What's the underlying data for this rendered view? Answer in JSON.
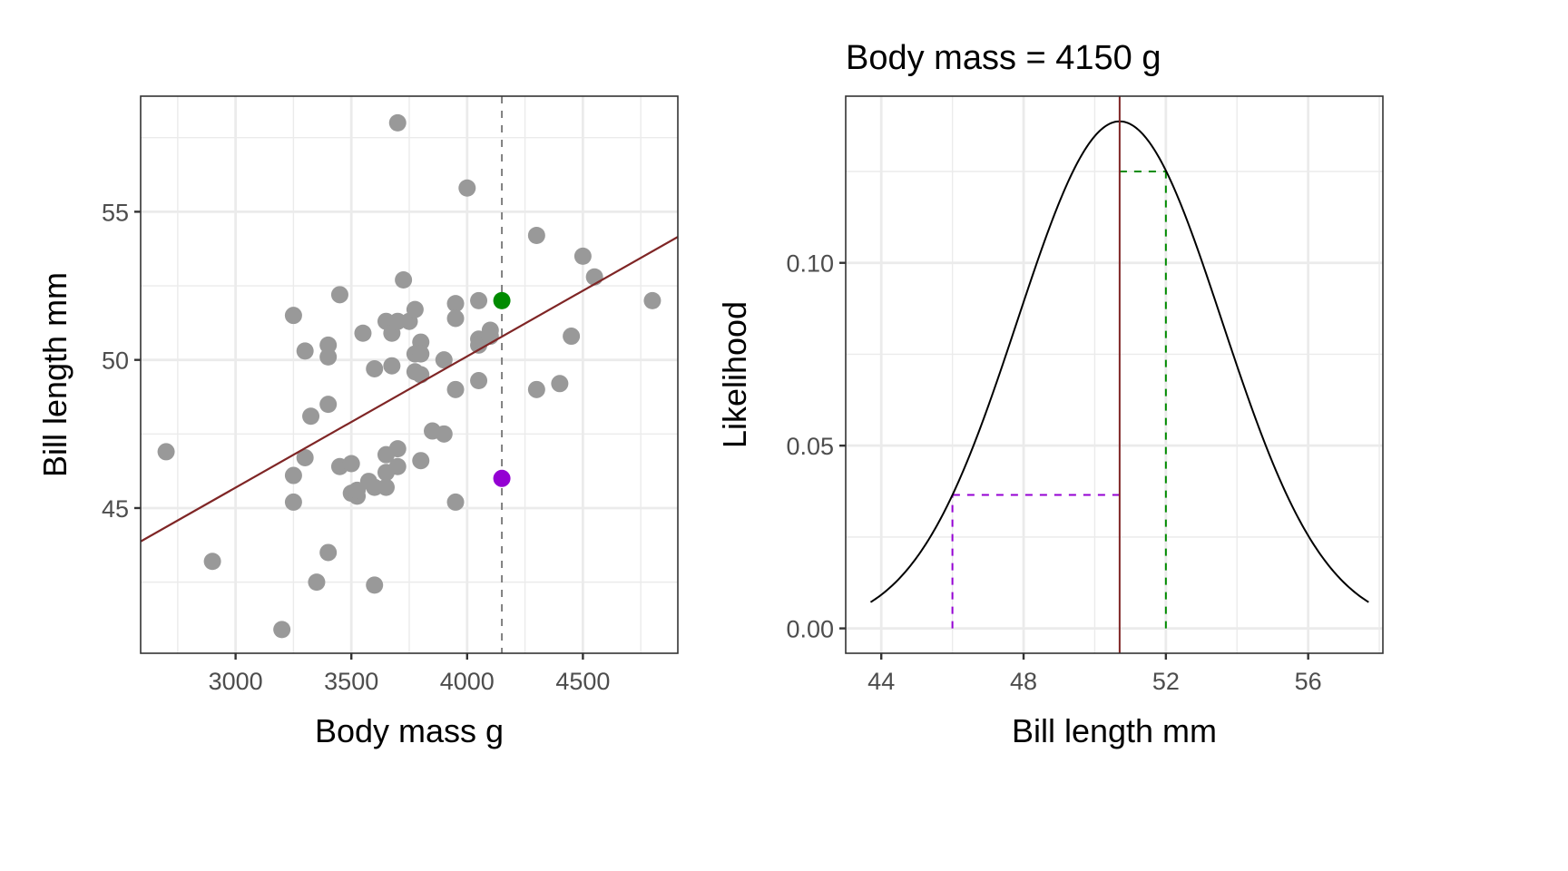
{
  "colors": {
    "points": "#999999",
    "regression_line": "#7f2525",
    "highlight_high": "#008b00",
    "highlight_low": "#9400d3",
    "density_curve": "#000000",
    "mean_line": "#7f2525",
    "grid": "#ebebeb",
    "panel_border": "#333333",
    "vline_dashed": "#7f7f7f"
  },
  "chart_data": [
    {
      "type": "scatter",
      "title": "",
      "xlabel": "Body mass g",
      "ylabel": "Bill length mm",
      "xlim": [
        2590,
        4910
      ],
      "ylim": [
        40.1,
        58.9
      ],
      "xticks": [
        3000,
        3500,
        4000,
        4500
      ],
      "xtick_labels": [
        "3000",
        "3500",
        "4000",
        "4500"
      ],
      "yticks": [
        45,
        50,
        55
      ],
      "ytick_labels": [
        "45",
        "50",
        "55"
      ],
      "grid": true,
      "points": [
        {
          "x": 2700,
          "y": 46.9
        },
        {
          "x": 2900,
          "y": 43.2
        },
        {
          "x": 3200,
          "y": 40.9
        },
        {
          "x": 3250,
          "y": 51.5
        },
        {
          "x": 3250,
          "y": 46.1
        },
        {
          "x": 3250,
          "y": 45.2
        },
        {
          "x": 3300,
          "y": 50.3
        },
        {
          "x": 3300,
          "y": 46.7
        },
        {
          "x": 3325,
          "y": 48.1
        },
        {
          "x": 3350,
          "y": 42.5
        },
        {
          "x": 3400,
          "y": 50.5
        },
        {
          "x": 3400,
          "y": 50.1
        },
        {
          "x": 3400,
          "y": 48.5
        },
        {
          "x": 3400,
          "y": 43.5
        },
        {
          "x": 3450,
          "y": 52.2
        },
        {
          "x": 3450,
          "y": 46.4
        },
        {
          "x": 3500,
          "y": 46.5
        },
        {
          "x": 3500,
          "y": 45.5
        },
        {
          "x": 3525,
          "y": 45.4
        },
        {
          "x": 3525,
          "y": 45.6
        },
        {
          "x": 3550,
          "y": 50.9
        },
        {
          "x": 3575,
          "y": 45.9
        },
        {
          "x": 3600,
          "y": 49.7
        },
        {
          "x": 3600,
          "y": 45.7
        },
        {
          "x": 3600,
          "y": 42.4
        },
        {
          "x": 3650,
          "y": 51.3
        },
        {
          "x": 3650,
          "y": 46.8
        },
        {
          "x": 3650,
          "y": 46.2
        },
        {
          "x": 3650,
          "y": 45.7
        },
        {
          "x": 3675,
          "y": 50.9
        },
        {
          "x": 3675,
          "y": 49.8
        },
        {
          "x": 3700,
          "y": 58.0
        },
        {
          "x": 3700,
          "y": 51.3
        },
        {
          "x": 3700,
          "y": 47.0
        },
        {
          "x": 3700,
          "y": 46.4
        },
        {
          "x": 3725,
          "y": 52.7
        },
        {
          "x": 3750,
          "y": 51.3
        },
        {
          "x": 3775,
          "y": 51.7
        },
        {
          "x": 3775,
          "y": 50.2
        },
        {
          "x": 3775,
          "y": 49.6
        },
        {
          "x": 3800,
          "y": 50.6
        },
        {
          "x": 3800,
          "y": 50.2
        },
        {
          "x": 3800,
          "y": 49.5
        },
        {
          "x": 3800,
          "y": 46.6
        },
        {
          "x": 3850,
          "y": 47.6
        },
        {
          "x": 3900,
          "y": 50.0
        },
        {
          "x": 3900,
          "y": 47.5
        },
        {
          "x": 3950,
          "y": 51.9
        },
        {
          "x": 3950,
          "y": 51.4
        },
        {
          "x": 3950,
          "y": 49.0
        },
        {
          "x": 3950,
          "y": 45.2
        },
        {
          "x": 4000,
          "y": 55.8
        },
        {
          "x": 4050,
          "y": 52.0
        },
        {
          "x": 4050,
          "y": 50.7
        },
        {
          "x": 4050,
          "y": 50.5
        },
        {
          "x": 4050,
          "y": 49.3
        },
        {
          "x": 4100,
          "y": 51.0
        },
        {
          "x": 4100,
          "y": 50.8
        },
        {
          "x": 4300,
          "y": 54.2
        },
        {
          "x": 4300,
          "y": 49.0
        },
        {
          "x": 4400,
          "y": 49.2
        },
        {
          "x": 4450,
          "y": 50.8
        },
        {
          "x": 4500,
          "y": 53.5
        },
        {
          "x": 4550,
          "y": 52.8
        },
        {
          "x": 4800,
          "y": 52.0
        }
      ],
      "highlighted_points": [
        {
          "name": "high",
          "x": 4150,
          "y": 52.0,
          "color": "#008b00"
        },
        {
          "name": "low",
          "x": 4150,
          "y": 46.0,
          "color": "#9400d3"
        }
      ],
      "regression_line": {
        "intercept": 32.4,
        "slope": 0.00443,
        "color": "#7f2525"
      },
      "vline": {
        "x": 4150,
        "style": "dashed",
        "color": "#7f7f7f"
      }
    },
    {
      "type": "line",
      "title": "Body mass = 4150 g",
      "xlabel": "Bill length mm",
      "ylabel": "Likelihood",
      "xlim": [
        43.0,
        58.1
      ],
      "ylim": [
        -0.0068,
        0.1456
      ],
      "xticks": [
        44,
        48,
        52,
        56
      ],
      "xtick_labels": [
        "44",
        "48",
        "52",
        "56"
      ],
      "yticks": [
        0.0,
        0.05,
        0.1
      ],
      "ytick_labels": [
        "0.00",
        "0.05",
        "0.10"
      ],
      "grid": true,
      "density": {
        "distribution": "normal",
        "mean": 50.7,
        "sd": 2.876,
        "x_from": 43.7,
        "x_to": 57.7
      },
      "mean_line": {
        "x": 50.7,
        "color": "#7f2525"
      },
      "guides": [
        {
          "name": "high",
          "x": 52.0,
          "likelihood": 0.125,
          "color": "#008b00"
        },
        {
          "name": "low",
          "x": 46.0,
          "likelihood": 0.0365,
          "color": "#9400d3"
        }
      ]
    }
  ]
}
